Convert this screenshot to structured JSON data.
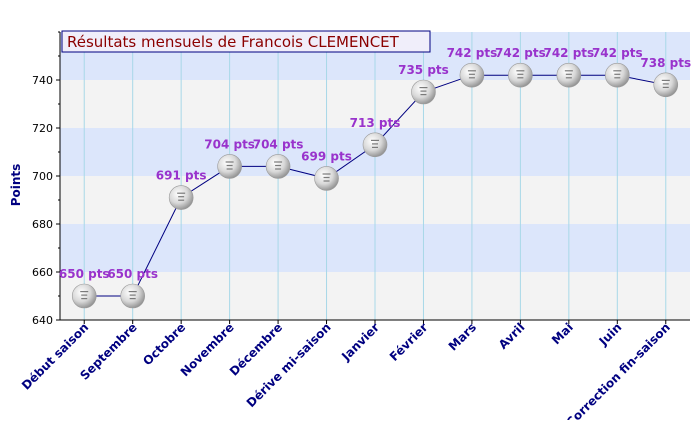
{
  "chart_data": {
    "type": "line",
    "title": "Résultats mensuels de Francois CLEMENCET",
    "xlabel": "",
    "ylabel": "Points",
    "ylim": [
      640,
      760
    ],
    "yticks": [
      640,
      660,
      680,
      700,
      720,
      740
    ],
    "grid": true,
    "legend": "none",
    "categories": [
      "Début saison",
      "Septembre",
      "Octobre",
      "Novembre",
      "Décembre",
      "Dérive mi-saison",
      "Janvier",
      "Février",
      "Mars",
      "Avril",
      "Mai",
      "Juin",
      "Correction fin-saison"
    ],
    "series": [
      {
        "values": [
          650,
          650,
          691,
          704,
          704,
          699,
          713,
          735,
          742,
          742,
          742,
          742,
          738
        ],
        "labels": [
          "650 pts",
          "650 pts",
          "691 pts",
          "704 pts",
          "704 pts",
          "699 pts",
          "713 pts",
          "735 pts",
          "742 pts",
          "742 pts",
          "742 pts",
          "742 pts",
          "738 pts"
        ]
      }
    ],
    "colors": {
      "title_text": "#8b0000",
      "title_bg": "#f0eefa",
      "band_blue": "#dce6fb",
      "band_gray": "#f3f3f3",
      "line": "#000080",
      "data_label": "#9933cc",
      "axis_label": "#000080",
      "tick_label": "#000000",
      "vgrid": "#a8d8e8"
    }
  }
}
